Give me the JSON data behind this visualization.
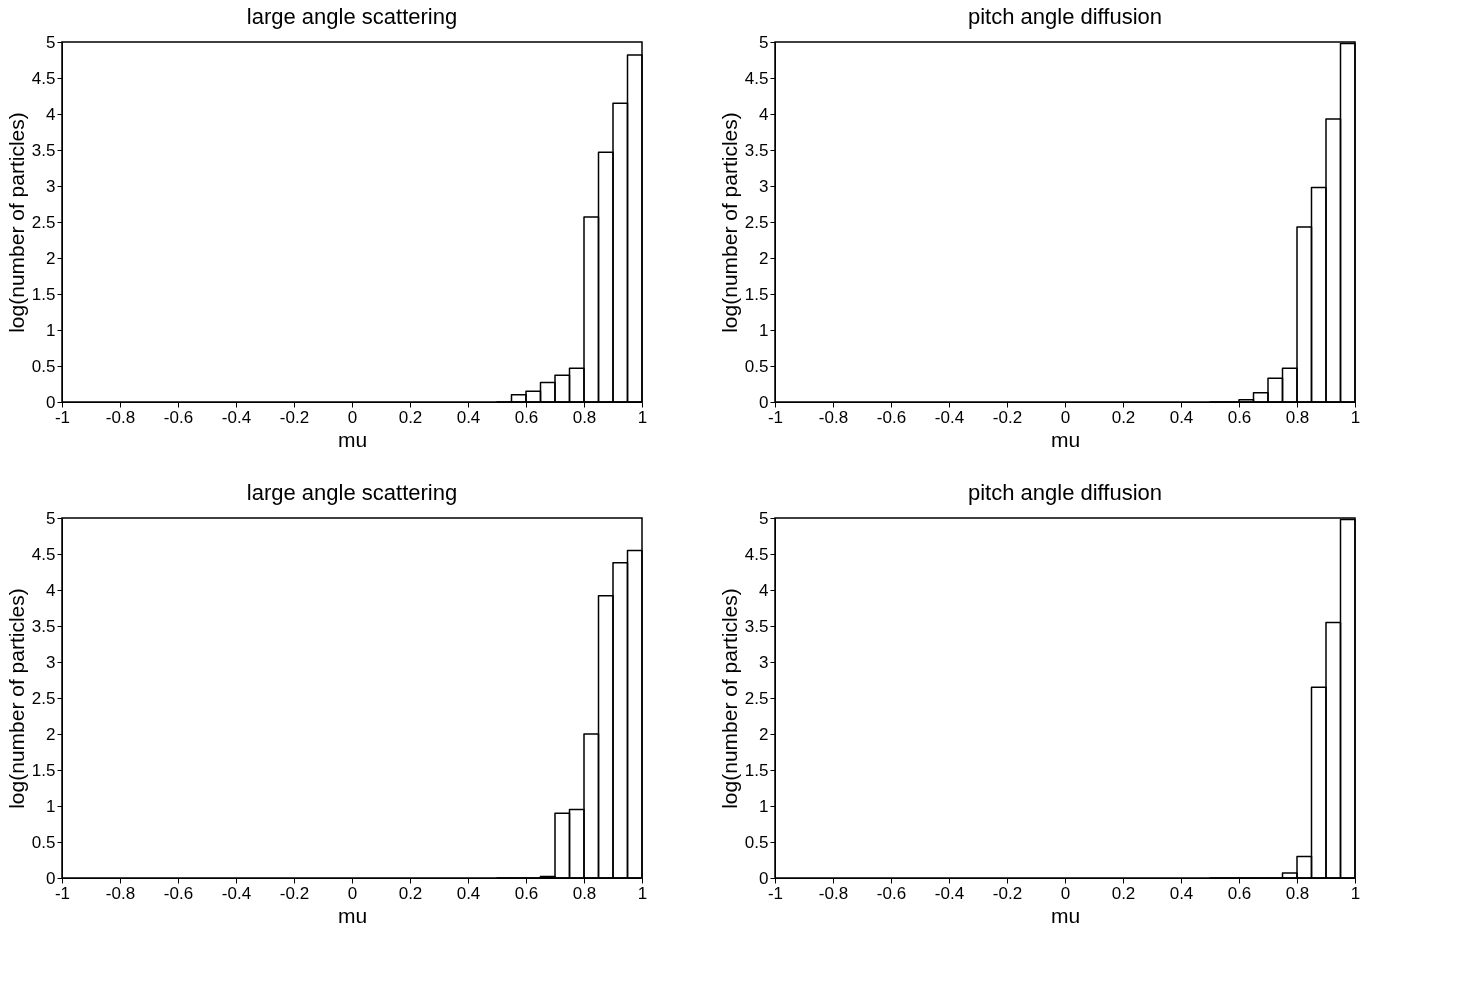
{
  "chart_data": [
    {
      "type": "histogram",
      "title": "large angle scattering",
      "xlabel": "mu",
      "ylabel": "log(number of particles)",
      "bins": [
        0.5,
        0.55,
        0.6,
        0.65,
        0.7,
        0.75,
        0.8,
        0.85,
        0.9,
        0.95,
        1.0
      ],
      "values": [
        0,
        0.1,
        0.15,
        0.27,
        0.37,
        0.47,
        2.57,
        3.47,
        4.15,
        4.82
      ],
      "color": "#000000",
      "xlim": [
        -1,
        1
      ],
      "ylim": [
        0,
        5
      ],
      "xticks": [
        -1,
        -0.8,
        -0.6,
        -0.4,
        -0.2,
        0,
        0.2,
        0.4,
        0.6,
        0.8,
        1
      ],
      "yticks": [
        0,
        0.5,
        1,
        1.5,
        2,
        2.5,
        3,
        3.5,
        4,
        4.5,
        5
      ],
      "grid": false
    },
    {
      "type": "histogram",
      "title": "pitch angle diffusion",
      "xlabel": "mu",
      "ylabel": "log(number of particles)",
      "bins": [
        0.5,
        0.55,
        0.6,
        0.65,
        0.7,
        0.75,
        0.8,
        0.85,
        0.9,
        0.95,
        1.0
      ],
      "values": [
        0,
        0,
        0.03,
        0.13,
        0.33,
        0.47,
        2.43,
        2.98,
        3.93,
        4.98
      ],
      "color": "#000000",
      "xlim": [
        -1,
        1
      ],
      "ylim": [
        0,
        5
      ],
      "xticks": [
        -1,
        -0.8,
        -0.6,
        -0.4,
        -0.2,
        0,
        0.2,
        0.4,
        0.6,
        0.8,
        1
      ],
      "yticks": [
        0,
        0.5,
        1,
        1.5,
        2,
        2.5,
        3,
        3.5,
        4,
        4.5,
        5
      ],
      "grid": false
    },
    {
      "type": "histogram",
      "title": "large angle scattering",
      "xlabel": "mu",
      "ylabel": "log(number of particles)",
      "bins": [
        0.5,
        0.55,
        0.6,
        0.65,
        0.7,
        0.75,
        0.8,
        0.85,
        0.9,
        0.95,
        1.0
      ],
      "values": [
        0,
        0,
        0,
        0.02,
        0.9,
        0.95,
        2.0,
        3.92,
        4.38,
        4.55
      ],
      "color": "#000000",
      "xlim": [
        -1,
        1
      ],
      "ylim": [
        0,
        5
      ],
      "xticks": [
        -1,
        -0.8,
        -0.6,
        -0.4,
        -0.2,
        0,
        0.2,
        0.4,
        0.6,
        0.8,
        1
      ],
      "yticks": [
        0,
        0.5,
        1,
        1.5,
        2,
        2.5,
        3,
        3.5,
        4,
        4.5,
        5
      ],
      "grid": false
    },
    {
      "type": "histogram",
      "title": "pitch angle diffusion",
      "xlabel": "mu",
      "ylabel": "log(number of particles)",
      "bins": [
        0.5,
        0.55,
        0.6,
        0.65,
        0.7,
        0.75,
        0.8,
        0.85,
        0.9,
        0.95,
        1.0
      ],
      "values": [
        0,
        0,
        0,
        0,
        0,
        0.07,
        0.3,
        2.65,
        3.55,
        4.98
      ],
      "color": "#000000",
      "xlim": [
        -1,
        1
      ],
      "ylim": [
        0,
        5
      ],
      "xticks": [
        -1,
        -0.8,
        -0.6,
        -0.4,
        -0.2,
        0,
        0.2,
        0.4,
        0.6,
        0.8,
        1
      ],
      "yticks": [
        0,
        0.5,
        1,
        1.5,
        2,
        2.5,
        3,
        3.5,
        4,
        4.5,
        5
      ],
      "grid": false
    }
  ]
}
